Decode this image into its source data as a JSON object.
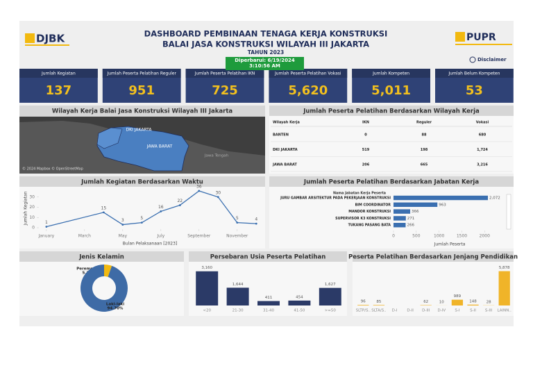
{
  "header": {
    "title_line1": "DASHBOARD PEMBINAAN TENAGA KERJA KONSTRUKSI",
    "title_line2": "BALAI JASA KONSTRUKSI WILAYAH III JAKARTA",
    "year": "TAHUN 2023",
    "updated": "Diperbarui: 6/19/2024 3:10:56 AM",
    "logo_left": "DJBK",
    "logo_right": "PUPR",
    "disclaimer": "Disclaimer"
  },
  "kpis": [
    {
      "label": "Jumlah Kegiatan",
      "value": "137"
    },
    {
      "label": "Jumlah Peserta Pelatihan Reguler",
      "value": "951"
    },
    {
      "label": "Jumlah Peserta Pelatihan IKN",
      "value": "725"
    },
    {
      "label": "Jumlah Peserta Pelatihan Vokasi",
      "value": "5,620"
    },
    {
      "label": "Jumlah Kompeten",
      "value": "5,011"
    },
    {
      "label": "Jumlah Belum Kompeten",
      "value": "53"
    }
  ],
  "map": {
    "title": "Wilayah Kerja Balai Jasa Konstruksi Wilayah III Jakarta",
    "labels": [
      "DKI JAKARTA",
      "JAWA BARAT",
      "Jawa Tengah"
    ],
    "attribution": "© 2024 Mapbox © OpenStreetMap"
  },
  "table": {
    "title": "Jumlah Peserta Pelatihan Berdasarkan Wilayah Kerja",
    "columns": [
      "Wilayah Kerja",
      "IKN",
      "Reguler",
      "Vokasi"
    ],
    "rows": [
      [
        "BANTEN",
        "0",
        "88",
        "680"
      ],
      [
        "DKI JAKARTA",
        "519",
        "198",
        "1,724"
      ],
      [
        "JAWA BARAT",
        "206",
        "665",
        "3,216"
      ]
    ]
  },
  "chart_data": [
    {
      "type": "line",
      "title": "Jumlah Kegiatan Berdasarkan Waktu",
      "xlabel": "Bulan Pelaksanaan [2023]",
      "ylabel": "Jumlah Kegiatan",
      "x": [
        1,
        4,
        5,
        6,
        7,
        8,
        9,
        10,
        11,
        12
      ],
      "values": [
        1,
        15,
        3,
        5,
        16,
        22,
        36,
        30,
        5,
        4
      ],
      "color": "#3a6fb0",
      "xlim": [
        0.75,
        12.1
      ],
      "xticks": [
        {
          "value": 1,
          "label": "January"
        },
        {
          "value": 3,
          "label": "March"
        },
        {
          "value": 5,
          "label": "May"
        },
        {
          "value": 7,
          "label": "July"
        },
        {
          "value": 9,
          "label": "September"
        },
        {
          "value": 11,
          "label": "November"
        }
      ],
      "ylim": [
        0,
        38
      ],
      "yticks": [
        0,
        10,
        20,
        30
      ]
    },
    {
      "type": "hbar",
      "title": "Jumlah Peserta Pelatihan Berdasarkan Jabatan Kerja",
      "category_header": "Nama Jabatan Kerja Peserta",
      "categories": [
        "JURU GAMBAR ARSITEKTUR PADA PEKERJAAN KONSTRUKSI",
        "BIM COORDINATOR",
        "MANDOR KONSTRUKSI",
        "SUPERVISOR K3 KONSTRUKSI",
        "TUKANG PASANG BATA"
      ],
      "values": [
        2072,
        963,
        366,
        271,
        266
      ],
      "value_labels": [
        "2,072",
        "963",
        "366",
        "271",
        "266"
      ],
      "color": "#3a6fb0",
      "xlim": [
        0,
        2300
      ],
      "xticks": [
        0,
        500,
        1000,
        1500,
        2000
      ],
      "xlabel": "Jumlah Peserta"
    },
    {
      "type": "pie",
      "title": "Jenis Kelamin",
      "categories": [
        "Perempuan",
        "Laki-laki"
      ],
      "values": [
        5.3,
        94.7
      ],
      "value_labels": [
        "5.30%",
        "94.70%"
      ],
      "colors": [
        "#f2b90f",
        "#3e6ba6"
      ],
      "donut": true
    },
    {
      "type": "bar",
      "title": "Persebaran Usia Peserta Pelatihan",
      "categories": [
        "<20",
        "21-30",
        "31-40",
        "41-50",
        ">=50"
      ],
      "values": [
        3160,
        1644,
        411,
        454,
        1627
      ],
      "value_labels": [
        "3,160",
        "1,644",
        "411",
        "454",
        "1,627"
      ],
      "color": "#2b3a67",
      "ylim": [
        0,
        3400
      ]
    },
    {
      "type": "bar",
      "title": "Peserta Pelatihan Berdasarkan Jenjang Pendidikan",
      "categories": [
        "SLTP/S..",
        "SLTA/S..",
        "D-I",
        "D-II",
        "D-III",
        "D-IV",
        "S-I",
        "S-II",
        "S-III",
        "LAINN.."
      ],
      "values": [
        96,
        85,
        null,
        null,
        62,
        10,
        989,
        148,
        28,
        5878
      ],
      "value_labels": [
        "96",
        "85",
        null,
        null,
        "62",
        "10",
        "989",
        "148",
        "28",
        "5,878"
      ],
      "color": "#f0b429",
      "ylim": [
        0,
        6300
      ]
    }
  ]
}
